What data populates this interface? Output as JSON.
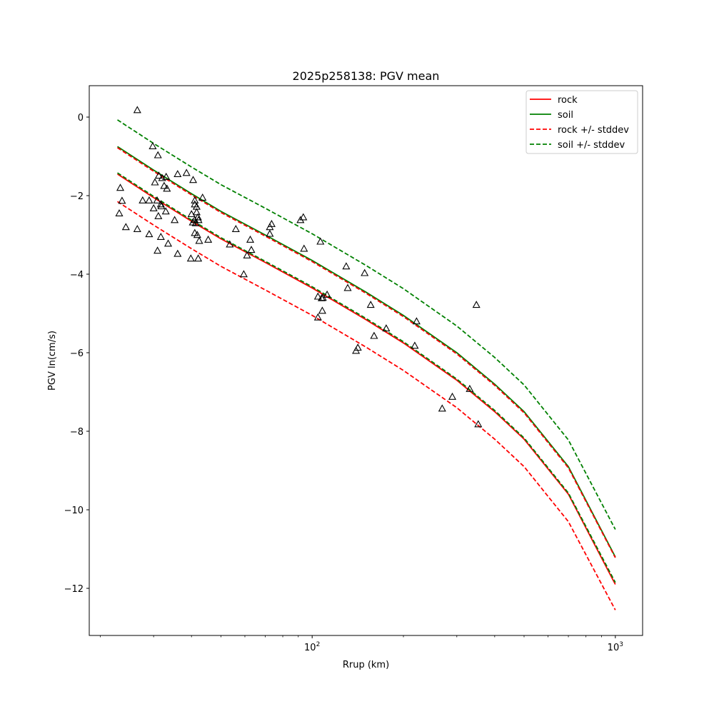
{
  "chart_data": {
    "type": "scatter",
    "title": "2025p258138: PGV mean",
    "xlabel": "Rrup (km)",
    "ylabel": "PGV ln(cm/s)",
    "xscale": "log",
    "xlim": [
      18.4,
      1230
    ],
    "ylim": [
      -13.2,
      0.8
    ],
    "x_ticks": [
      {
        "value": 100,
        "base": "10",
        "exp": "2"
      },
      {
        "value": 1000,
        "base": "10",
        "exp": "3"
      }
    ],
    "y_ticks": [
      0,
      -2,
      -4,
      -6,
      -8,
      -10,
      -12
    ],
    "y_tick_labels": [
      "0",
      "−2",
      "−4",
      "−6",
      "−8",
      "−10",
      "−12"
    ],
    "grid": false,
    "legend_position": "top-right",
    "colors": {
      "rock": "#ff0000",
      "soil": "#008000",
      "observed": "#000000"
    },
    "series": [
      {
        "name": "rock",
        "style": "solid",
        "color": "#ff0000",
        "x": [
          22.8,
          30,
          40,
          50,
          70,
          100,
          150,
          200,
          300,
          400,
          500,
          700,
          1000
        ],
        "y": [
          -1.45,
          -2.05,
          -2.65,
          -3.1,
          -3.7,
          -4.35,
          -5.15,
          -5.75,
          -6.7,
          -7.5,
          -8.2,
          -9.6,
          -11.9
        ]
      },
      {
        "name": "soil",
        "style": "solid",
        "color": "#008000",
        "x": [
          22.8,
          30,
          40,
          50,
          70,
          100,
          150,
          200,
          300,
          400,
          500,
          700,
          1000
        ],
        "y": [
          -0.75,
          -1.35,
          -1.95,
          -2.4,
          -3.0,
          -3.65,
          -4.45,
          -5.05,
          -6.0,
          -6.8,
          -7.5,
          -8.9,
          -11.2
        ]
      },
      {
        "name": "rock +/- stddev",
        "style": "dashed",
        "color": "#ff0000",
        "x": [
          22.8,
          30,
          40,
          50,
          70,
          100,
          150,
          200,
          300,
          400,
          500,
          700,
          1000
        ],
        "y": [
          -2.15,
          -2.75,
          -3.35,
          -3.8,
          -4.4,
          -5.05,
          -5.85,
          -6.45,
          -7.4,
          -8.2,
          -8.9,
          -10.3,
          -12.55
        ]
      },
      {
        "name": "",
        "style": "dashed",
        "color": "#ff0000",
        "x": [
          22.8,
          30,
          40,
          50,
          70,
          100,
          150,
          200,
          300,
          400,
          500,
          700,
          1000
        ],
        "y": [
          -0.78,
          -1.38,
          -1.98,
          -2.43,
          -3.03,
          -3.68,
          -4.48,
          -5.08,
          -6.03,
          -6.83,
          -7.53,
          -8.93,
          -11.22
        ]
      },
      {
        "name": "soil +/- stddev",
        "style": "dashed",
        "color": "#008000",
        "x": [
          22.8,
          30,
          40,
          50,
          70,
          100,
          150,
          200,
          300,
          400,
          500,
          700,
          1000
        ],
        "y": [
          -0.07,
          -0.67,
          -1.27,
          -1.72,
          -2.32,
          -2.97,
          -3.77,
          -4.37,
          -5.32,
          -6.12,
          -6.82,
          -8.22,
          -10.5
        ]
      },
      {
        "name": "",
        "style": "dashed",
        "color": "#008000",
        "x": [
          22.8,
          30,
          40,
          50,
          70,
          100,
          150,
          200,
          300,
          400,
          500,
          700,
          1000
        ],
        "y": [
          -1.42,
          -2.02,
          -2.62,
          -3.07,
          -3.67,
          -4.32,
          -5.12,
          -5.72,
          -6.67,
          -7.47,
          -8.17,
          -9.57,
          -11.85
        ]
      }
    ],
    "observed": {
      "x": [
        26.5,
        29.8,
        31.0,
        38.5,
        30.3,
        31.2,
        32.0,
        33.0,
        36.0,
        32.5,
        40.5,
        33.2,
        23.3,
        29.0,
        30.8,
        27.6,
        31.7,
        43.5,
        23.6,
        41.0,
        31.8,
        30.0,
        32.9,
        31.1,
        23.1,
        40.0,
        41.6,
        42.0,
        41.0,
        40.4,
        41.6,
        41.0,
        42.2,
        35.2,
        41.3,
        24.3,
        26.5,
        29.0,
        41.0,
        41.8,
        31.7,
        45.4,
        42.4,
        33.5,
        53.5,
        56.0,
        63.0,
        61.0,
        36.0,
        30.9,
        39.8,
        42.1,
        94.0,
        106.5,
        93.5,
        91.5,
        73.5,
        72.5,
        72.5,
        62.5,
        59.5,
        129.5,
        149.0,
        131.0,
        104.5,
        107.5,
        112.0,
        108.0,
        104.5,
        108.5,
        156.0,
        221.0,
        175.5,
        160.0,
        141.5,
        139.5,
        218.0,
        348.0,
        331.0,
        290.0,
        268.5,
        353.0
      ],
      "y": [
        0.18,
        -0.74,
        -0.97,
        -1.42,
        -1.66,
        -1.49,
        -1.55,
        -1.52,
        -1.45,
        -1.75,
        -1.6,
        -1.82,
        -1.8,
        -2.12,
        -2.12,
        -2.12,
        -2.22,
        -2.05,
        -2.13,
        -2.12,
        -2.27,
        -2.32,
        -2.4,
        -2.52,
        -2.45,
        -2.47,
        -2.42,
        -2.55,
        -2.62,
        -2.68,
        -2.28,
        -2.22,
        -2.62,
        -2.62,
        -2.7,
        -2.8,
        -2.85,
        -2.98,
        -2.95,
        -3.0,
        -3.05,
        -3.12,
        -3.15,
        -3.22,
        -3.24,
        -2.85,
        -3.38,
        -3.52,
        -3.48,
        -3.4,
        -3.6,
        -3.6,
        -3.35,
        -3.17,
        -2.55,
        -2.62,
        -2.72,
        -2.8,
        -2.97,
        -3.12,
        -4.0,
        -3.8,
        -3.97,
        -4.35,
        -4.57,
        -4.61,
        -4.52,
        -4.93,
        -5.1,
        -4.6,
        -4.78,
        -5.2,
        -5.38,
        -5.57,
        -5.87,
        -5.95,
        -5.82,
        -4.78,
        -6.92,
        -7.12,
        -7.42,
        -7.82
      ]
    }
  }
}
